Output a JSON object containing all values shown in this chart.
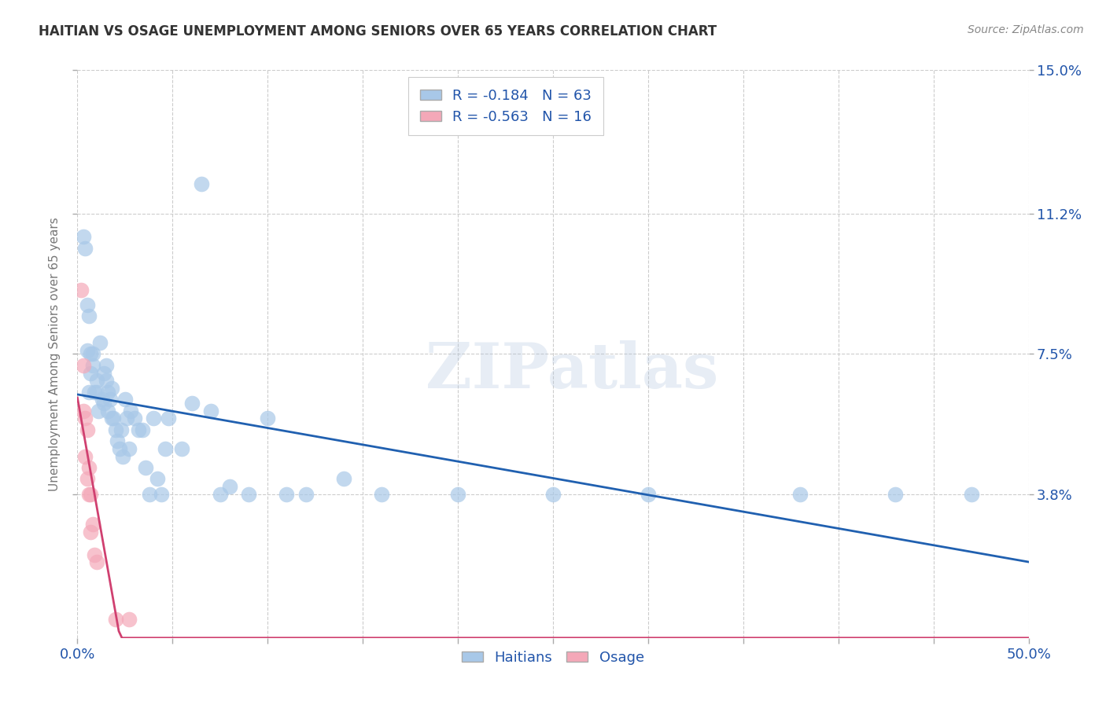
{
  "title": "HAITIAN VS OSAGE UNEMPLOYMENT AMONG SENIORS OVER 65 YEARS CORRELATION CHART",
  "source": "Source: ZipAtlas.com",
  "ylabel": "Unemployment Among Seniors over 65 years",
  "xlim": [
    0.0,
    0.5
  ],
  "ylim": [
    0.0,
    0.15
  ],
  "xticks": [
    0.0,
    0.05,
    0.1,
    0.15,
    0.2,
    0.25,
    0.3,
    0.35,
    0.4,
    0.45,
    0.5
  ],
  "xticklabels_show": [
    "0.0%",
    "",
    "",
    "",
    "",
    "",
    "",
    "",
    "",
    "",
    "50.0%"
  ],
  "yticks": [
    0.038,
    0.075,
    0.112,
    0.15
  ],
  "yticklabels": [
    "3.8%",
    "7.5%",
    "11.2%",
    "15.0%"
  ],
  "r_haitian": -0.184,
  "n_haitian": 63,
  "r_osage": -0.563,
  "n_osage": 16,
  "haitian_color": "#a8c8e8",
  "osage_color": "#f4a8b8",
  "line_haitian_color": "#2060b0",
  "line_osage_color": "#d04070",
  "background_color": "#ffffff",
  "grid_color": "#cccccc",
  "title_color": "#333333",
  "legend_label_color": "#2255aa",
  "watermark": "ZIPatlas",
  "haitian_x": [
    0.003,
    0.004,
    0.005,
    0.005,
    0.006,
    0.006,
    0.007,
    0.007,
    0.008,
    0.008,
    0.009,
    0.01,
    0.01,
    0.011,
    0.012,
    0.013,
    0.014,
    0.014,
    0.015,
    0.015,
    0.016,
    0.016,
    0.017,
    0.018,
    0.018,
    0.019,
    0.02,
    0.021,
    0.022,
    0.023,
    0.024,
    0.025,
    0.026,
    0.027,
    0.028,
    0.03,
    0.032,
    0.034,
    0.036,
    0.038,
    0.04,
    0.042,
    0.044,
    0.046,
    0.048,
    0.055,
    0.06,
    0.065,
    0.07,
    0.075,
    0.08,
    0.09,
    0.1,
    0.11,
    0.12,
    0.14,
    0.16,
    0.2,
    0.25,
    0.3,
    0.38,
    0.43,
    0.47
  ],
  "haitian_y": [
    0.106,
    0.103,
    0.088,
    0.076,
    0.085,
    0.065,
    0.075,
    0.07,
    0.075,
    0.072,
    0.065,
    0.065,
    0.068,
    0.06,
    0.078,
    0.063,
    0.07,
    0.062,
    0.072,
    0.068,
    0.065,
    0.06,
    0.063,
    0.058,
    0.066,
    0.058,
    0.055,
    0.052,
    0.05,
    0.055,
    0.048,
    0.063,
    0.058,
    0.05,
    0.06,
    0.058,
    0.055,
    0.055,
    0.045,
    0.038,
    0.058,
    0.042,
    0.038,
    0.05,
    0.058,
    0.05,
    0.062,
    0.12,
    0.06,
    0.038,
    0.04,
    0.038,
    0.058,
    0.038,
    0.038,
    0.042,
    0.038,
    0.038,
    0.038,
    0.038,
    0.038,
    0.038,
    0.038
  ],
  "osage_x": [
    0.002,
    0.003,
    0.003,
    0.004,
    0.004,
    0.005,
    0.005,
    0.006,
    0.006,
    0.007,
    0.007,
    0.008,
    0.009,
    0.01,
    0.02,
    0.027
  ],
  "osage_y": [
    0.092,
    0.072,
    0.06,
    0.058,
    0.048,
    0.055,
    0.042,
    0.045,
    0.038,
    0.038,
    0.028,
    0.03,
    0.022,
    0.02,
    0.005,
    0.005
  ]
}
